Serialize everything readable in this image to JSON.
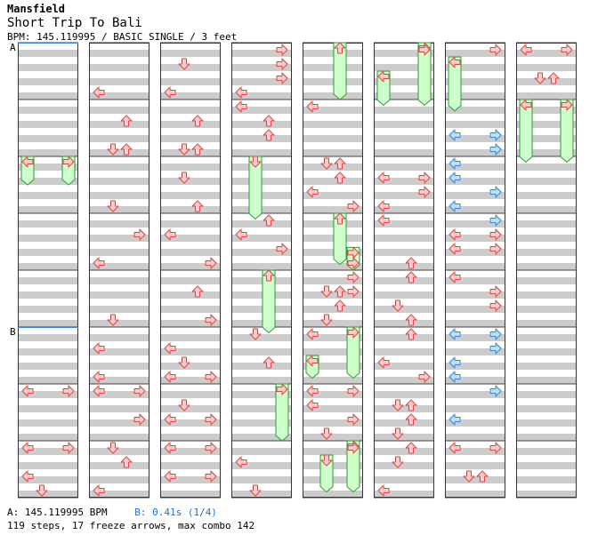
{
  "header": {
    "artist": "Mansfield",
    "title": "Short Trip To Bali",
    "meta": "BPM: 145.119995 / BASIC SINGLE / 3 feet"
  },
  "markers": {
    "a": "A",
    "b": "B"
  },
  "footer": {
    "bpm_a": "A: 145.119995 BPM",
    "bpm_b": "B: 0.41s (1/4)",
    "stats": "119 steps, 17 freeze arrows, max combo 142"
  },
  "colors": {
    "band": "#cccccc",
    "red_fill": "#ffcccc",
    "red_stroke": "#dd4444",
    "blue_fill": "#bbe0ff",
    "blue_stroke": "#3388dd",
    "freeze_fill": "#ccffcc",
    "freeze_stroke": "#339933",
    "measure_line": "#444444",
    "stop_line": "#3b7de0"
  },
  "columns": [
    {
      "arrows": [
        {
          "d": "L",
          "t": 12,
          "c": "r"
        },
        {
          "d": "R",
          "t": 12,
          "c": "r"
        },
        {
          "d": "L",
          "t": 14,
          "c": "r"
        },
        {
          "d": "R",
          "t": 14,
          "c": "r"
        },
        {
          "d": "L",
          "t": 15,
          "c": "r"
        },
        {
          "d": "D",
          "t": 15.5,
          "c": "r"
        }
      ],
      "freezes": [
        {
          "x": "L",
          "a": 4,
          "b": 5
        },
        {
          "x": "R",
          "a": 4,
          "b": 5
        }
      ]
    },
    {
      "arrows": [
        {
          "d": "L",
          "t": 1.5,
          "c": "r"
        },
        {
          "d": "U",
          "t": 2.5,
          "c": "r"
        },
        {
          "d": "D",
          "t": 3.5,
          "c": "r"
        },
        {
          "d": "U",
          "t": 3.5,
          "c": "r"
        },
        {
          "d": "D",
          "t": 5.5,
          "c": "r"
        },
        {
          "d": "R",
          "t": 6.5,
          "c": "r"
        },
        {
          "d": "L",
          "t": 7.5,
          "c": "r"
        },
        {
          "d": "D",
          "t": 9.5,
          "c": "r"
        },
        {
          "d": "L",
          "t": 10.5,
          "c": "r"
        },
        {
          "d": "L",
          "t": 11.5,
          "c": "r"
        },
        {
          "d": "L",
          "t": 12,
          "c": "r"
        },
        {
          "d": "R",
          "t": 12,
          "c": "r"
        },
        {
          "d": "R",
          "t": 13,
          "c": "r"
        },
        {
          "d": "D",
          "t": 14,
          "c": "r"
        },
        {
          "d": "U",
          "t": 14.5,
          "c": "r"
        },
        {
          "d": "L",
          "t": 15.5,
          "c": "r"
        }
      ],
      "freezes": []
    },
    {
      "arrows": [
        {
          "d": "D",
          "t": 0.5,
          "c": "r"
        },
        {
          "d": "L",
          "t": 1.5,
          "c": "r"
        },
        {
          "d": "U",
          "t": 2.5,
          "c": "r"
        },
        {
          "d": "D",
          "t": 3.5,
          "c": "r"
        },
        {
          "d": "U",
          "t": 3.5,
          "c": "r"
        },
        {
          "d": "D",
          "t": 4.5,
          "c": "r"
        },
        {
          "d": "U",
          "t": 5.5,
          "c": "r"
        },
        {
          "d": "L",
          "t": 6.5,
          "c": "r"
        },
        {
          "d": "R",
          "t": 7.5,
          "c": "r"
        },
        {
          "d": "U",
          "t": 8.5,
          "c": "r"
        },
        {
          "d": "R",
          "t": 9.5,
          "c": "r"
        },
        {
          "d": "L",
          "t": 10.5,
          "c": "r"
        },
        {
          "d": "D",
          "t": 11,
          "c": "r"
        },
        {
          "d": "L",
          "t": 11.5,
          "c": "r"
        },
        {
          "d": "R",
          "t": 11.5,
          "c": "r"
        },
        {
          "d": "D",
          "t": 12.5,
          "c": "r"
        },
        {
          "d": "L",
          "t": 13,
          "c": "r"
        },
        {
          "d": "R",
          "t": 13,
          "c": "r"
        },
        {
          "d": "L",
          "t": 14,
          "c": "r"
        },
        {
          "d": "R",
          "t": 14,
          "c": "r"
        },
        {
          "d": "L",
          "t": 15,
          "c": "r"
        },
        {
          "d": "R",
          "t": 15,
          "c": "r"
        }
      ],
      "freezes": []
    },
    {
      "arrows": [
        {
          "d": "R",
          "t": 0,
          "c": "r"
        },
        {
          "d": "R",
          "t": 0.5,
          "c": "r"
        },
        {
          "d": "R",
          "t": 1,
          "c": "r"
        },
        {
          "d": "L",
          "t": 1.5,
          "c": "r"
        },
        {
          "d": "L",
          "t": 2,
          "c": "r"
        },
        {
          "d": "U",
          "t": 2.5,
          "c": "r"
        },
        {
          "d": "U",
          "t": 3,
          "c": "r"
        },
        {
          "d": "L",
          "t": 6.5,
          "c": "r"
        },
        {
          "d": "U",
          "t": 6,
          "c": "r"
        },
        {
          "d": "R",
          "t": 7,
          "c": "r"
        },
        {
          "d": "D",
          "t": 10,
          "c": "r"
        },
        {
          "d": "U",
          "t": 11,
          "c": "r"
        },
        {
          "d": "L",
          "t": 14.5,
          "c": "r"
        },
        {
          "d": "D",
          "t": 15.5,
          "c": "r"
        }
      ],
      "freezes": [
        {
          "x": "D",
          "a": 4,
          "b": 6.2
        },
        {
          "x": "U",
          "a": 8,
          "b": 10.2
        },
        {
          "x": "R",
          "a": 12,
          "b": 14
        }
      ]
    },
    {
      "arrows": [
        {
          "d": "L",
          "t": 2,
          "c": "r"
        },
        {
          "d": "D",
          "t": 4,
          "c": "r"
        },
        {
          "d": "U",
          "t": 4,
          "c": "r"
        },
        {
          "d": "U",
          "t": 4.5,
          "c": "r"
        },
        {
          "d": "L",
          "t": 5,
          "c": "r"
        },
        {
          "d": "R",
          "t": 5.5,
          "c": "r"
        },
        {
          "d": "R",
          "t": 7.5,
          "c": "r"
        },
        {
          "d": "R",
          "t": 8,
          "c": "r"
        },
        {
          "d": "D",
          "t": 8.5,
          "c": "r"
        },
        {
          "d": "U",
          "t": 8.5,
          "c": "r"
        },
        {
          "d": "R",
          "t": 8.5,
          "c": "r"
        },
        {
          "d": "U",
          "t": 9,
          "c": "r"
        },
        {
          "d": "D",
          "t": 9.5,
          "c": "r"
        },
        {
          "d": "L",
          "t": 10,
          "c": "r"
        },
        {
          "d": "L",
          "t": 12,
          "c": "r"
        },
        {
          "d": "R",
          "t": 12,
          "c": "r"
        },
        {
          "d": "L",
          "t": 12.5,
          "c": "r"
        },
        {
          "d": "R",
          "t": 13,
          "c": "r"
        },
        {
          "d": "D",
          "t": 13.5,
          "c": "r"
        },
        {
          "d": "R",
          "t": 14,
          "c": "r"
        }
      ],
      "freezes": [
        {
          "x": "U",
          "a": 0,
          "b": 2
        },
        {
          "x": "U",
          "a": 6,
          "b": 7.8
        },
        {
          "x": "R",
          "a": 7.2,
          "b": 8
        },
        {
          "x": "L",
          "a": 11,
          "b": 11.8
        },
        {
          "x": "R",
          "a": 10,
          "b": 11.8
        },
        {
          "x": "D",
          "a": 14.5,
          "b": 15.8
        },
        {
          "x": "R",
          "a": 14,
          "b": 15.8
        }
      ]
    },
    {
      "arrows": [
        {
          "d": "R",
          "t": 0,
          "c": "r"
        },
        {
          "d": "L",
          "t": 4.5,
          "c": "r"
        },
        {
          "d": "R",
          "t": 4.5,
          "c": "r"
        },
        {
          "d": "R",
          "t": 5,
          "c": "r"
        },
        {
          "d": "L",
          "t": 5.5,
          "c": "r"
        },
        {
          "d": "L",
          "t": 6,
          "c": "r"
        },
        {
          "d": "U",
          "t": 7.5,
          "c": "r"
        },
        {
          "d": "U",
          "t": 8,
          "c": "r"
        },
        {
          "d": "D",
          "t": 9,
          "c": "r"
        },
        {
          "d": "U",
          "t": 9.5,
          "c": "r"
        },
        {
          "d": "U",
          "t": 10,
          "c": "r"
        },
        {
          "d": "L",
          "t": 11,
          "c": "r"
        },
        {
          "d": "R",
          "t": 11.5,
          "c": "r"
        },
        {
          "d": "U",
          "t": 12.5,
          "c": "r"
        },
        {
          "d": "D",
          "t": 12.5,
          "c": "r"
        },
        {
          "d": "U",
          "t": 13,
          "c": "r"
        },
        {
          "d": "D",
          "t": 13.5,
          "c": "r"
        },
        {
          "d": "U",
          "t": 14,
          "c": "r"
        },
        {
          "d": "D",
          "t": 14.5,
          "c": "r"
        },
        {
          "d": "L",
          "t": 15.5,
          "c": "r"
        }
      ],
      "freezes": [
        {
          "x": "L",
          "a": 1,
          "b": 2.2
        },
        {
          "x": "R",
          "a": 0,
          "b": 2.2
        }
      ]
    },
    {
      "arrows": [
        {
          "d": "R",
          "t": 0,
          "c": "r"
        },
        {
          "d": "L",
          "t": 3,
          "c": "b"
        },
        {
          "d": "R",
          "t": 3,
          "c": "b"
        },
        {
          "d": "R",
          "t": 3.5,
          "c": "b"
        },
        {
          "d": "L",
          "t": 4,
          "c": "b"
        },
        {
          "d": "L",
          "t": 4.5,
          "c": "b"
        },
        {
          "d": "R",
          "t": 5,
          "c": "b"
        },
        {
          "d": "L",
          "t": 5.5,
          "c": "b"
        },
        {
          "d": "R",
          "t": 6,
          "c": "b"
        },
        {
          "d": "L",
          "t": 6.5,
          "c": "r"
        },
        {
          "d": "R",
          "t": 6.5,
          "c": "r"
        },
        {
          "d": "L",
          "t": 7,
          "c": "r"
        },
        {
          "d": "R",
          "t": 7,
          "c": "r"
        },
        {
          "d": "L",
          "t": 8,
          "c": "r"
        },
        {
          "d": "R",
          "t": 8.5,
          "c": "r"
        },
        {
          "d": "R",
          "t": 9,
          "c": "r"
        },
        {
          "d": "L",
          "t": 10,
          "c": "b"
        },
        {
          "d": "R",
          "t": 10,
          "c": "b"
        },
        {
          "d": "R",
          "t": 10.5,
          "c": "b"
        },
        {
          "d": "L",
          "t": 11,
          "c": "b"
        },
        {
          "d": "L",
          "t": 11.5,
          "c": "b"
        },
        {
          "d": "R",
          "t": 12,
          "c": "b"
        },
        {
          "d": "L",
          "t": 13,
          "c": "b"
        },
        {
          "d": "L",
          "t": 14,
          "c": "r"
        },
        {
          "d": "R",
          "t": 14,
          "c": "r"
        },
        {
          "d": "D",
          "t": 15,
          "c": "r"
        },
        {
          "d": "U",
          "t": 15,
          "c": "r"
        }
      ],
      "freezes": [
        {
          "x": "L",
          "a": 0.5,
          "b": 2.4
        }
      ]
    },
    {
      "arrows": [
        {
          "d": "L",
          "t": 0,
          "c": "r"
        },
        {
          "d": "R",
          "t": 0,
          "c": "r"
        },
        {
          "d": "D",
          "t": 1,
          "c": "r"
        },
        {
          "d": "U",
          "t": 1,
          "c": "r"
        }
      ],
      "freezes": [
        {
          "x": "L",
          "a": 2,
          "b": 4.2
        },
        {
          "x": "R",
          "a": 2,
          "b": 4.2
        }
      ]
    }
  ]
}
